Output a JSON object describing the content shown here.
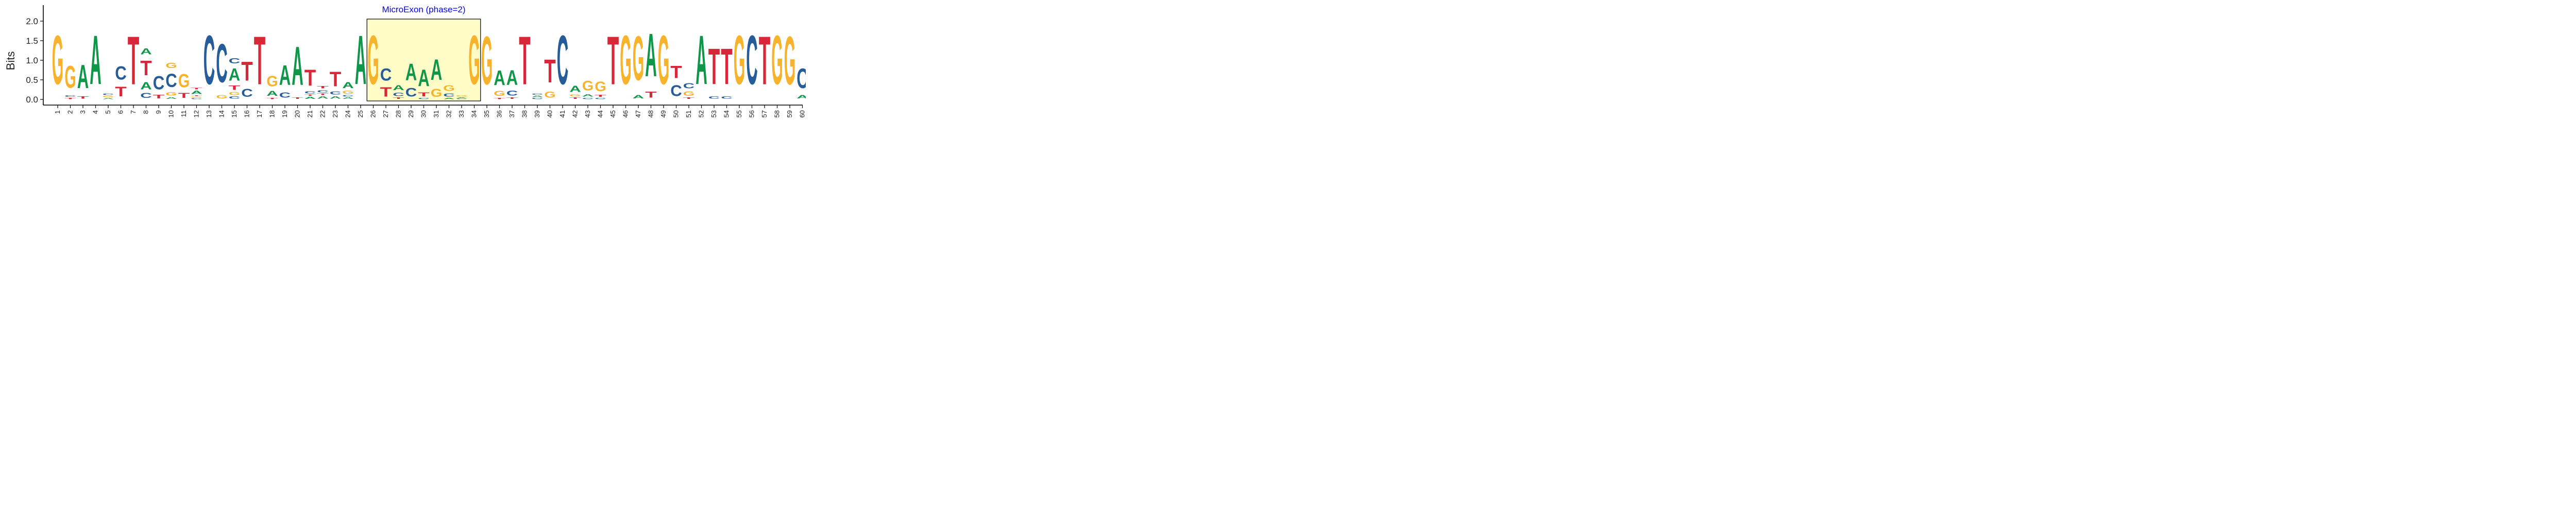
{
  "chart_data": {
    "type": "sequence-logo",
    "title": "",
    "xlabel": "",
    "ylabel": "Bits",
    "ylim": [
      0,
      2.0
    ],
    "yticks": [
      0.0,
      0.5,
      1.0,
      1.5,
      2.0
    ],
    "ytick_labels": [
      "0.0",
      "0.5",
      "1.0",
      "1.5",
      "2.0"
    ],
    "positions": [
      "1",
      "2",
      "3",
      "4",
      "5",
      "6",
      "7",
      "8",
      "9",
      "10",
      "11",
      "12",
      "13",
      "14",
      "15",
      "16",
      "17",
      "18",
      "19",
      "20",
      "21",
      "22",
      "23",
      "24",
      "25",
      "26",
      "27",
      "28",
      "29",
      "30",
      "31",
      "32",
      "33",
      "34",
      "35",
      "36",
      "37",
      "38",
      "39",
      "40",
      "41",
      "42",
      "43",
      "44",
      "45",
      "46",
      "47",
      "48",
      "49",
      "50",
      "51",
      "52",
      "53",
      "54",
      "55",
      "56",
      "57",
      "58",
      "59",
      "60"
    ],
    "colors": {
      "A": "#109648",
      "C": "#255C99",
      "G": "#F7B32B",
      "T": "#D62839"
    },
    "columns": [
      [
        [
          "G",
          2.0
        ]
      ],
      [
        [
          "T",
          0.05
        ],
        [
          "C",
          0.07
        ],
        [
          "G",
          0.9
        ]
      ],
      [
        [
          "T",
          0.1
        ],
        [
          "A",
          0.95
        ]
      ],
      [
        [
          "A",
          2.0
        ]
      ],
      [
        [
          "A",
          0.04
        ],
        [
          "G",
          0.06
        ],
        [
          "C",
          0.06
        ]
      ],
      [
        [
          "T",
          0.4
        ],
        [
          "C",
          0.55
        ]
      ],
      [
        [
          "T",
          1.97
        ]
      ],
      [
        [
          "C",
          0.2
        ],
        [
          "A",
          0.3
        ],
        [
          "T",
          0.6
        ],
        [
          "A",
          0.25
        ]
      ],
      [
        [
          "T",
          0.15
        ],
        [
          "C",
          0.55
        ]
      ],
      [
        [
          "A",
          0.07
        ],
        [
          "G",
          0.14
        ],
        [
          "C",
          0.55
        ],
        [
          "G",
          0.22
        ]
      ],
      [
        [
          "T",
          0.2
        ],
        [
          "G",
          0.55
        ]
      ],
      [
        [
          "C",
          0.04
        ],
        [
          "G",
          0.04
        ],
        [
          "T",
          0.03
        ],
        [
          "A",
          0.13
        ],
        [
          "T",
          0.07
        ]
      ],
      [
        [
          "C",
          2.0
        ]
      ],
      [
        [
          "G",
          0.13
        ],
        [
          "C",
          1.57
        ]
      ],
      [
        [
          "C",
          0.09
        ],
        [
          "G",
          0.12
        ],
        [
          "T",
          0.17
        ],
        [
          "A",
          0.5
        ],
        [
          "C",
          0.22
        ]
      ],
      [
        [
          "C",
          0.33
        ],
        [
          "T",
          0.78
        ]
      ],
      [
        [
          "T",
          1.97
        ]
      ],
      [
        [
          "T",
          0.05
        ],
        [
          "A",
          0.2
        ],
        [
          "G",
          0.42
        ]
      ],
      [
        [
          "C",
          0.22
        ],
        [
          "A",
          0.8
        ]
      ],
      [
        [
          "T",
          0.06
        ],
        [
          "A",
          1.58
        ]
      ],
      [
        [
          "A",
          0.08
        ],
        [
          "T",
          0.05
        ],
        [
          "C",
          0.1
        ],
        [
          "T",
          0.65
        ]
      ],
      [
        [
          "A",
          0.1
        ],
        [
          "T",
          0.06
        ],
        [
          "C",
          0.1
        ],
        [
          "T",
          0.1
        ]
      ],
      [
        [
          "A",
          0.1
        ],
        [
          "C",
          0.12
        ],
        [
          "T",
          0.6
        ]
      ],
      [
        [
          "A",
          0.06
        ],
        [
          "C",
          0.06
        ],
        [
          "G",
          0.12
        ],
        [
          "A",
          0.24
        ]
      ],
      [
        [
          "A",
          2.0
        ]
      ],
      [
        [
          "G",
          2.0
        ]
      ],
      [
        [
          "T",
          0.38
        ],
        [
          "C",
          0.5
        ]
      ],
      [
        [
          "T",
          0.06
        ],
        [
          "C",
          0.14
        ],
        [
          "A",
          0.2
        ]
      ],
      [
        [
          "C",
          0.36
        ],
        [
          "A",
          0.68
        ]
      ],
      [
        [
          "C",
          0.05
        ],
        [
          "T",
          0.16
        ],
        [
          "A",
          0.68
        ]
      ],
      [
        [
          "G",
          0.33
        ],
        [
          "A",
          0.85
        ]
      ],
      [
        [
          "A",
          0.05
        ],
        [
          "C",
          0.12
        ],
        [
          "G",
          0.23
        ]
      ],
      [
        [
          "C",
          0.03
        ],
        [
          "A",
          0.03
        ],
        [
          "G",
          0.05
        ]
      ],
      [
        [
          "G",
          2.0
        ]
      ],
      [
        [
          "G",
          1.97
        ]
      ],
      [
        [
          "T",
          0.05
        ],
        [
          "G",
          0.2
        ],
        [
          "A",
          0.6
        ]
      ],
      [
        [
          "T",
          0.06
        ],
        [
          "C",
          0.2
        ],
        [
          "A",
          0.6
        ]
      ],
      [
        [
          "T",
          1.97
        ]
      ],
      [
        [
          "C",
          0.05
        ],
        [
          "A",
          0.06
        ],
        [
          "C",
          0.05
        ]
      ],
      [
        [
          "G",
          0.25
        ],
        [
          "T",
          0.95
        ]
      ],
      [
        [
          "C",
          2.0
        ]
      ],
      [
        [
          "T",
          0.06
        ],
        [
          "G",
          0.08
        ],
        [
          "A",
          0.26
        ]
      ],
      [
        [
          "C",
          0.05
        ],
        [
          "A",
          0.1
        ],
        [
          "G",
          0.4
        ]
      ],
      [
        [
          "C",
          0.05
        ],
        [
          "T",
          0.08
        ],
        [
          "G",
          0.4
        ]
      ],
      [
        [
          "T",
          1.97
        ]
      ],
      [
        [
          "G",
          2.0
        ]
      ],
      [
        [
          "A",
          0.14
        ],
        [
          "G",
          1.8
        ]
      ],
      [
        [
          "T",
          0.25
        ],
        [
          "A",
          1.75
        ]
      ],
      [
        [
          "G",
          2.0
        ]
      ],
      [
        [
          "C",
          0.45
        ],
        [
          "T",
          0.5
        ]
      ],
      [
        [
          "T",
          0.06
        ],
        [
          "G",
          0.18
        ],
        [
          "C",
          0.22
        ]
      ],
      [
        [
          "A",
          2.0
        ]
      ],
      [
        [
          "C",
          0.1
        ],
        [
          "T",
          1.47
        ]
      ],
      [
        [
          "C",
          0.1
        ],
        [
          "T",
          1.47
        ]
      ],
      [
        [
          "G",
          2.0
        ]
      ],
      [
        [
          "C",
          2.0
        ]
      ],
      [
        [
          "T",
          1.97
        ]
      ],
      [
        [
          "G",
          2.0
        ]
      ],
      [
        [
          "G",
          1.97
        ]
      ],
      [
        [
          "A",
          0.13
        ],
        [
          "C",
          0.8
        ]
      ]
    ],
    "highlight": {
      "label": "MicroExon (phase=2)",
      "start": 26,
      "end": 34,
      "fill": "#FFFCC8",
      "label_color": "#0000FF"
    }
  }
}
